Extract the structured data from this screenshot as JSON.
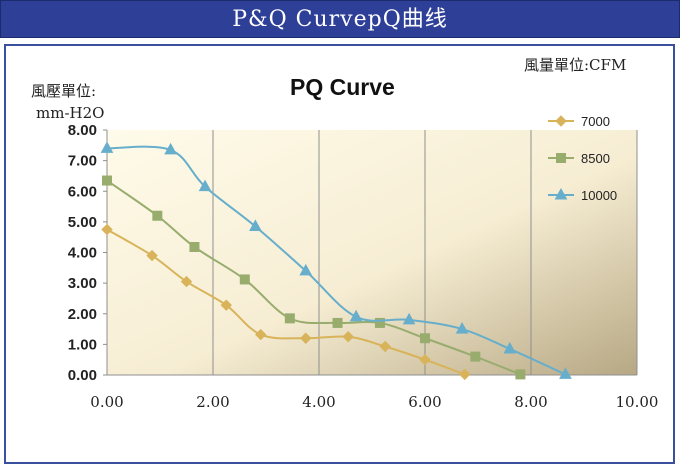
{
  "header": {
    "title": "P&Q CurvepQ曲线"
  },
  "units": {
    "flow": "風量單位:CFM",
    "pressure_line1": "風壓單位:",
    "pressure_line2": "mm-H2O"
  },
  "chart_data": {
    "type": "line",
    "title": "PQ Curve",
    "xlim": [
      0,
      10
    ],
    "ylim": [
      0,
      8
    ],
    "x_ticks": [
      "0.00",
      "2.00",
      "4.00",
      "6.00",
      "8.00",
      "10.00"
    ],
    "y_ticks": [
      "0.00",
      "1.00",
      "2.00",
      "3.00",
      "4.00",
      "5.00",
      "6.00",
      "7.00",
      "8.00"
    ],
    "grid": "vertical",
    "legend_position": "right",
    "series": [
      {
        "name": "7000",
        "color": "#d8b35a",
        "marker": "diamond",
        "points": [
          [
            0,
            4.75
          ],
          [
            0.85,
            3.9
          ],
          [
            1.5,
            3.05
          ],
          [
            2.25,
            2.28
          ],
          [
            2.9,
            1.32
          ],
          [
            3.75,
            1.2
          ],
          [
            4.55,
            1.25
          ],
          [
            5.25,
            0.93
          ],
          [
            6.0,
            0.5
          ],
          [
            6.75,
            0.02
          ]
        ]
      },
      {
        "name": "8500",
        "color": "#98ac6e",
        "marker": "square",
        "points": [
          [
            0,
            6.35
          ],
          [
            0.95,
            5.2
          ],
          [
            1.65,
            4.18
          ],
          [
            2.6,
            3.12
          ],
          [
            3.45,
            1.85
          ],
          [
            4.35,
            1.7
          ],
          [
            5.15,
            1.7
          ],
          [
            6.0,
            1.2
          ],
          [
            6.95,
            0.6
          ],
          [
            7.8,
            0.02
          ]
        ]
      },
      {
        "name": "10000",
        "color": "#66aecb",
        "marker": "triangle",
        "points": [
          [
            0,
            7.4
          ],
          [
            1.2,
            7.35
          ],
          [
            1.85,
            6.15
          ],
          [
            2.8,
            4.85
          ],
          [
            3.75,
            3.4
          ],
          [
            4.7,
            1.9
          ],
          [
            5.7,
            1.8
          ],
          [
            6.7,
            1.5
          ],
          [
            7.6,
            0.85
          ],
          [
            8.65,
            0.02
          ]
        ]
      }
    ]
  }
}
